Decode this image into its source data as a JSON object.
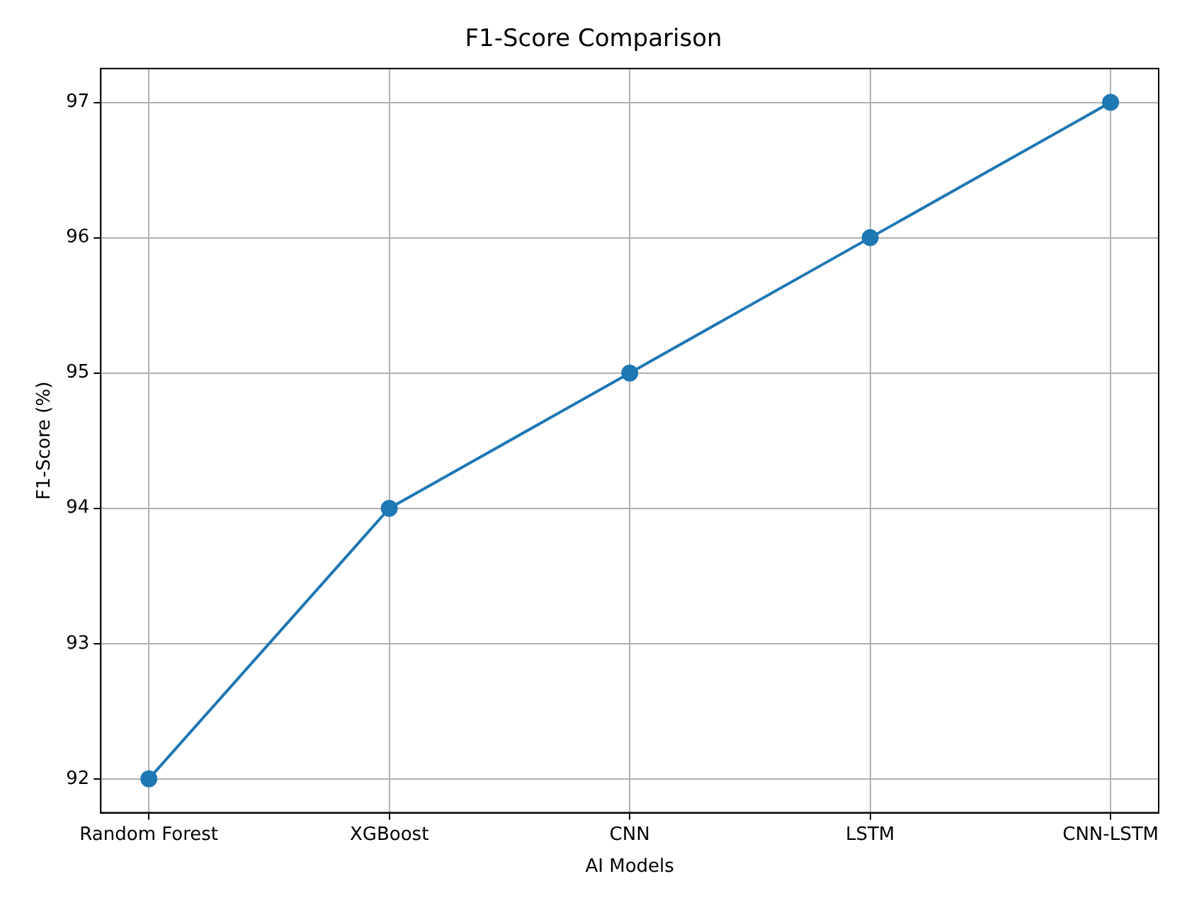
{
  "chart_data": {
    "type": "line",
    "title": "F1-Score Comparison",
    "xlabel": "AI Models",
    "ylabel": "F1-Score (%)",
    "categories": [
      "Random Forest",
      "XGBoost",
      "CNN",
      "LSTM",
      "CNN-LSTM"
    ],
    "series": [
      {
        "color": "#1f77b4",
        "values": [
          92,
          94,
          95,
          96,
          97
        ]
      }
    ],
    "ylim": [
      91.75,
      97.25
    ],
    "yticks": [
      92,
      93,
      94,
      95,
      96,
      97
    ],
    "grid": true,
    "legend": false,
    "marker": "circle",
    "line_style": "solid"
  }
}
